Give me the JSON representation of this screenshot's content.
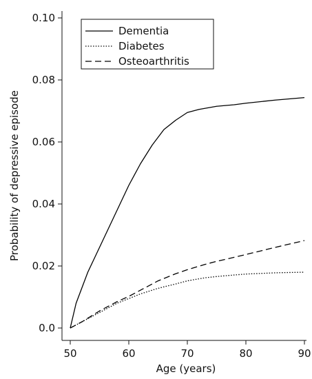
{
  "chart_data": {
    "type": "line",
    "title": "",
    "xlabel": "Age (years)",
    "ylabel": "Probability of depressive episode",
    "xlim": [
      50,
      90
    ],
    "ylim": [
      0.0,
      0.1
    ],
    "x_ticks": [
      50,
      60,
      70,
      80,
      90
    ],
    "x_tick_labels": [
      "50",
      "60",
      "70",
      "80",
      "90"
    ],
    "y_ticks": [
      0.0,
      0.02,
      0.04,
      0.06,
      0.08,
      0.1
    ],
    "y_tick_labels": [
      "0.0",
      "0.02",
      "0.04",
      "0.06",
      "0.08",
      "0.10"
    ],
    "grid": false,
    "legend_position": "top-left",
    "series": [
      {
        "name": "Dementia",
        "dash": "solid",
        "x": [
          50,
          50.5,
          51,
          52,
          53,
          54,
          55,
          56,
          58,
          60,
          62,
          64,
          66,
          68,
          70,
          72,
          75,
          78,
          80,
          85,
          90
        ],
        "y": [
          0.0,
          0.004,
          0.008,
          0.013,
          0.018,
          0.022,
          0.026,
          0.03,
          0.038,
          0.046,
          0.053,
          0.059,
          0.064,
          0.067,
          0.0695,
          0.0705,
          0.0715,
          0.072,
          0.0725,
          0.0735,
          0.0743
        ]
      },
      {
        "name": "Diabetes",
        "dash": "dotted",
        "x": [
          50,
          52,
          55,
          58,
          60,
          62,
          65,
          68,
          70,
          73,
          75,
          78,
          80,
          85,
          90
        ],
        "y": [
          0.0,
          0.002,
          0.005,
          0.008,
          0.0095,
          0.011,
          0.0128,
          0.0142,
          0.0152,
          0.0162,
          0.0166,
          0.0171,
          0.0174,
          0.0178,
          0.018
        ]
      },
      {
        "name": "Osteoarthritis",
        "dash": "dashed",
        "x": [
          50,
          52,
          55,
          58,
          60,
          62,
          65,
          68,
          70,
          73,
          75,
          78,
          80,
          85,
          90
        ],
        "y": [
          0.0,
          0.002,
          0.0055,
          0.0085,
          0.0102,
          0.0122,
          0.0152,
          0.0175,
          0.0188,
          0.0205,
          0.0215,
          0.0228,
          0.0237,
          0.026,
          0.0282
        ]
      }
    ]
  }
}
